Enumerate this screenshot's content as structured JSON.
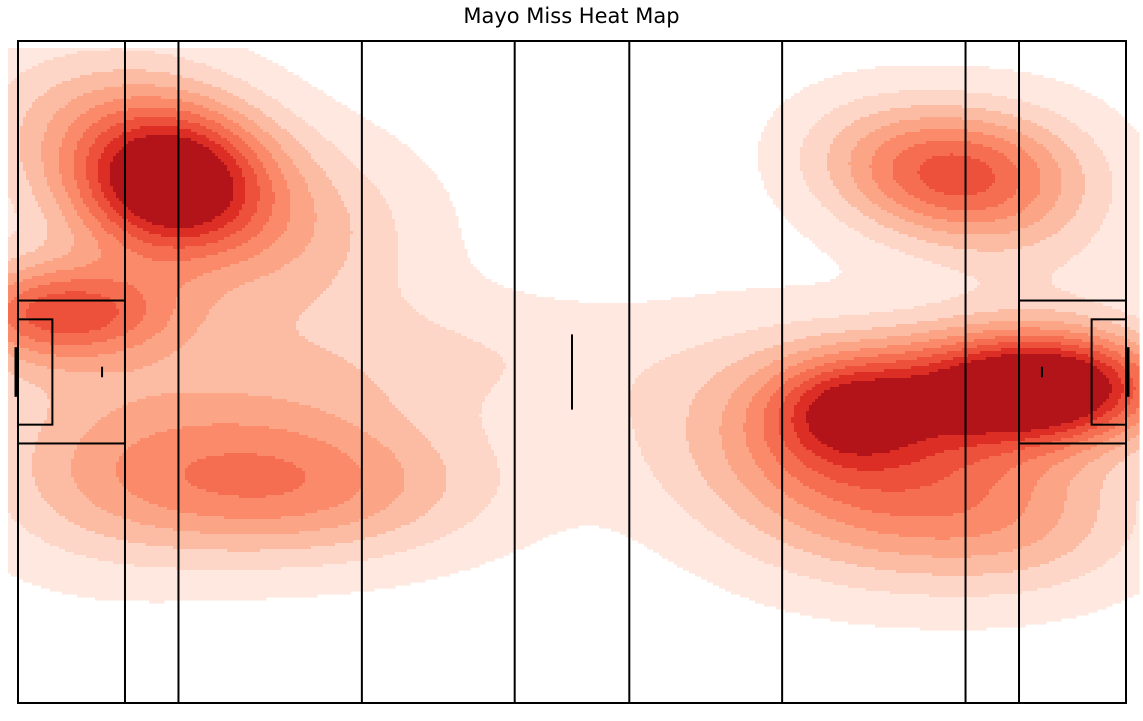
{
  "chart_data": {
    "type": "heatmap",
    "title": "Mayo Miss Heat Map",
    "xlabel": "",
    "ylabel": "",
    "colormap": "Reds",
    "pitch": {
      "length_m": 145,
      "width_m": 88,
      "line_markers_m": [
        14,
        21,
        45,
        65,
        80,
        100,
        124,
        131
      ]
    },
    "contour_colors": [
      "#fee8e0",
      "#fdd6c7",
      "#fcbca4",
      "#fca486",
      "#fb8a6a",
      "#f66e51",
      "#ee513b",
      "#dd2e25",
      "#b31419"
    ],
    "hotspots": [
      {
        "x": 20,
        "y": 69,
        "sx": 9,
        "sy": 7,
        "w": 1.0
      },
      {
        "x": 10,
        "y": 77,
        "sx": 12,
        "sy": 8,
        "w": 0.3
      },
      {
        "x": 36,
        "y": 62,
        "sx": 12,
        "sy": 9,
        "w": 0.3
      },
      {
        "x": 8,
        "y": 52,
        "sx": 10,
        "sy": 4.5,
        "w": 0.55
      },
      {
        "x": 0,
        "y": 52,
        "sx": 8,
        "sy": 6,
        "w": 0.2
      },
      {
        "x": 34,
        "y": 29,
        "sx": 18,
        "sy": 7,
        "w": 0.55
      },
      {
        "x": 30,
        "y": 42,
        "sx": 15,
        "sy": 7,
        "w": 0.18
      },
      {
        "x": 10,
        "y": 34,
        "sx": 12,
        "sy": 11,
        "w": 0.2
      },
      {
        "x": 52,
        "y": 46,
        "sx": 12,
        "sy": 6,
        "w": 0.1
      },
      {
        "x": 123,
        "y": 70,
        "sx": 10,
        "sy": 6,
        "w": 0.6
      },
      {
        "x": 133,
        "y": 65,
        "sx": 10,
        "sy": 10,
        "w": 0.16
      },
      {
        "x": 112,
        "y": 74,
        "sx": 9,
        "sy": 6,
        "w": 0.18
      },
      {
        "x": 130,
        "y": 42,
        "sx": 13,
        "sy": 5.5,
        "w": 0.85
      },
      {
        "x": 138,
        "y": 42,
        "sx": 9,
        "sy": 5,
        "w": 0.4
      },
      {
        "x": 108,
        "y": 39,
        "sx": 7,
        "sy": 5,
        "w": 0.45
      },
      {
        "x": 113,
        "y": 30,
        "sx": 15,
        "sy": 9,
        "w": 0.55
      },
      {
        "x": 96,
        "y": 40,
        "sx": 14,
        "sy": 9,
        "w": 0.2
      },
      {
        "x": 68,
        "y": 46,
        "sx": 11,
        "sy": 6,
        "w": 0.07
      },
      {
        "x": 132,
        "y": 24,
        "sx": 12,
        "sy": 7,
        "w": 0.25
      }
    ]
  }
}
